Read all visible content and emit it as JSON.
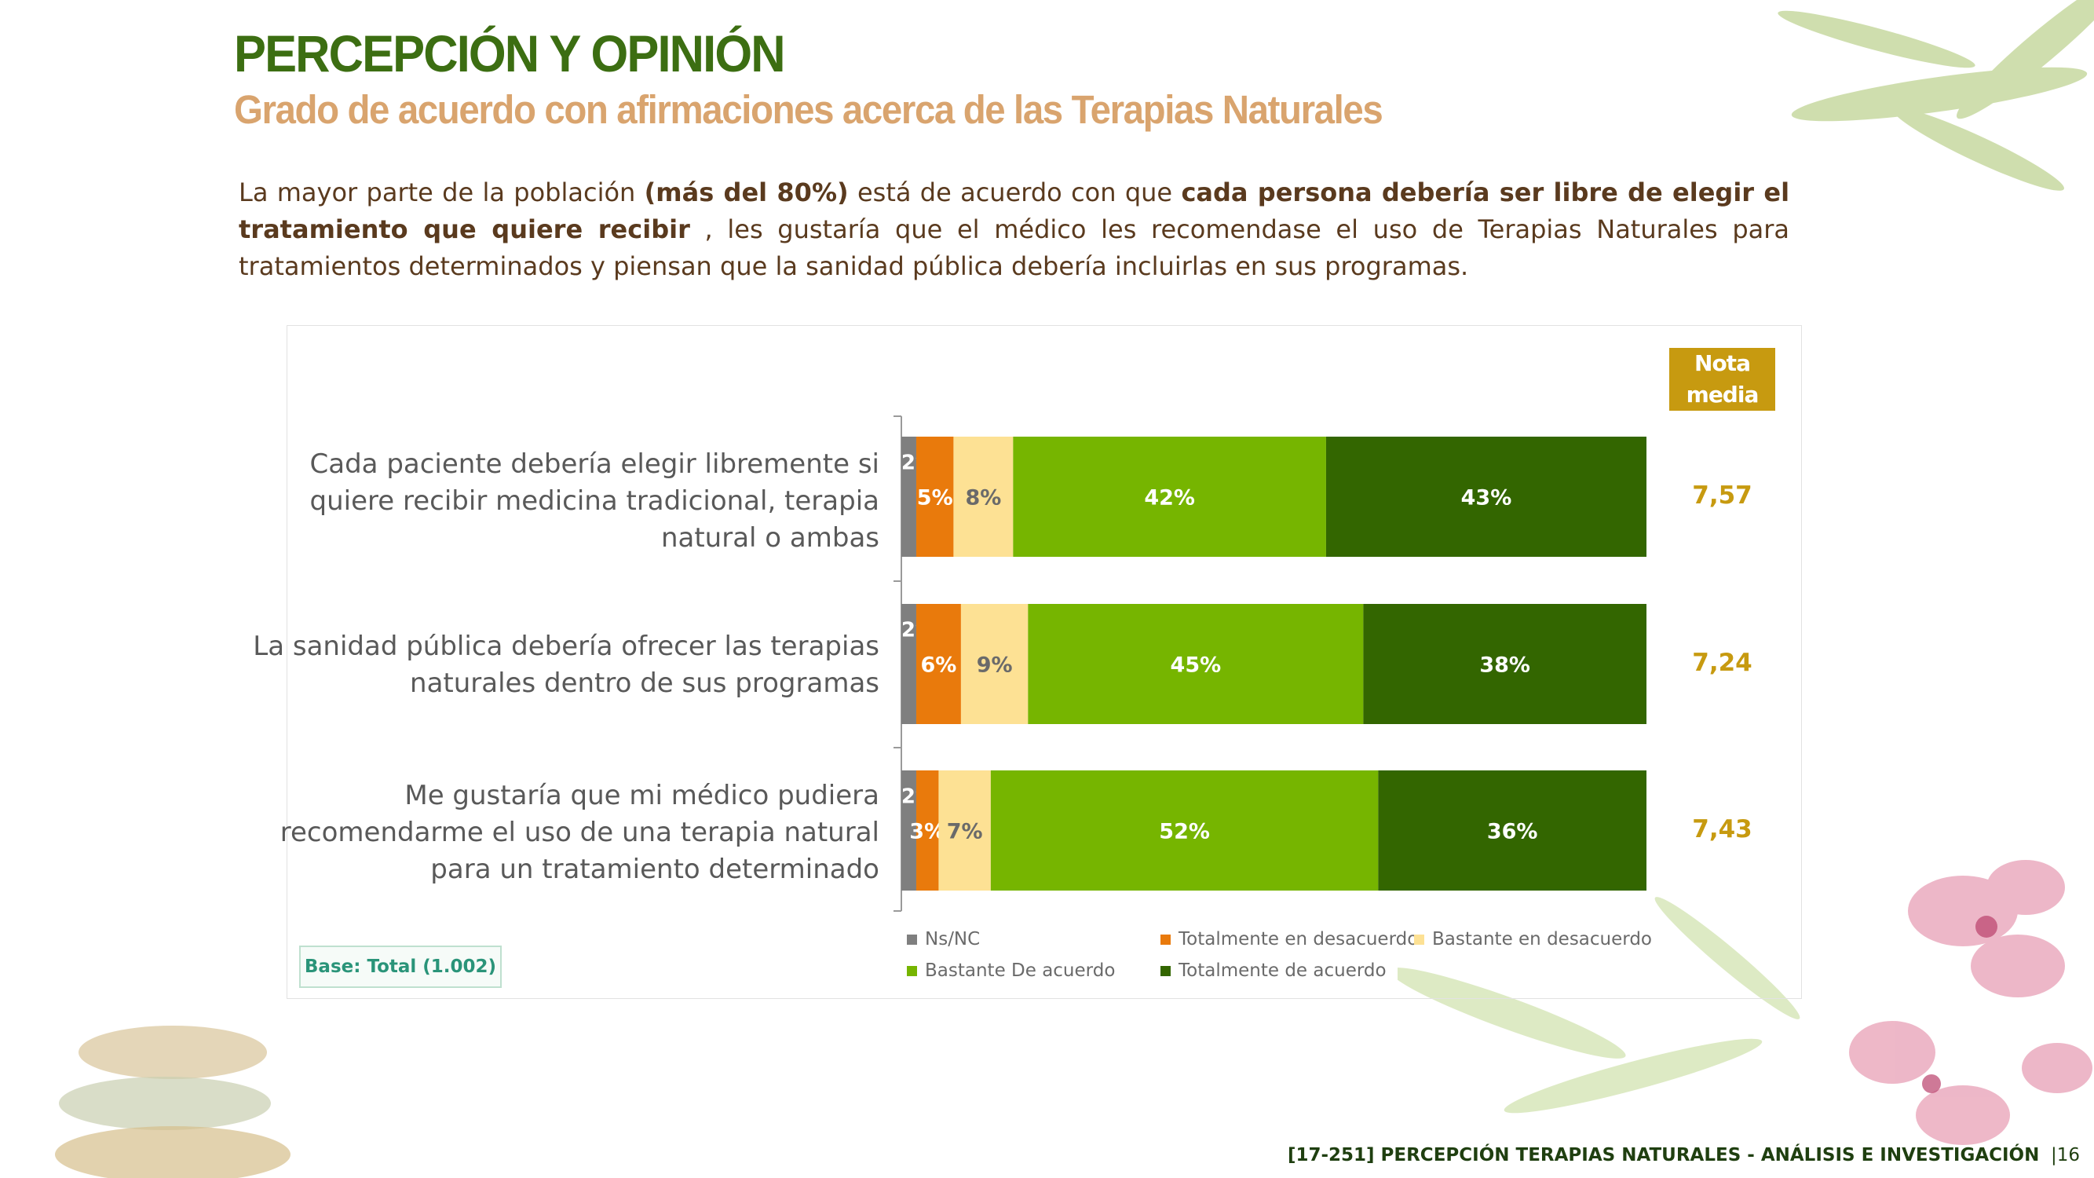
{
  "header": {
    "title": "PERCEPCIÓN Y OPINIÓN",
    "subtitle": "Grado de acuerdo con afirmaciones acerca de las Terapias Naturales"
  },
  "intro": {
    "p1": "La mayor parte de la población ",
    "b1": "(más del 80%)",
    "p2": " está de acuerdo con que ",
    "b2": "cada persona debería ser libre de elegir el tratamiento que quiere recibir",
    "p3": " , les gustaría que el médico les recomendase el uso de Terapias Naturales para tratamientos determinados y piensan que la sanidad pública debería incluirlas en sus programas."
  },
  "nota_media_header": "Nota\nmedia",
  "base_label": "Base: Total (1.002)",
  "footer": {
    "text": "[17-251] PERCEPCIÓN TERAPIAS NATURALES - ANÁLISIS E INVESTIGACIÓN",
    "page": "|16"
  },
  "colors": {
    "title": "#3c6e12",
    "subtitle": "#d9a46e",
    "nota": "#c79a10"
  },
  "chart_data": {
    "type": "bar",
    "orientation": "horizontal",
    "stacked": true,
    "xlim": [
      0,
      100
    ],
    "grid": false,
    "legend_position": "bottom",
    "categories": [
      "Cada paciente debería elegir libremente si quiere recibir medicina tradicional, terapia natural o ambas",
      "La sanidad pública debería ofrecer las terapias naturales dentro de sus programas",
      "Me gustaría que mi médico pudiera recomendarme el uso de una terapia natural para un tratamiento determinado"
    ],
    "series": [
      {
        "name": "Ns/NC",
        "color": "#7f7f7f",
        "values": [
          2,
          2,
          2
        ],
        "labels": [
          "2%",
          "2%",
          "2%"
        ]
      },
      {
        "name": "Totalmente en desacuerdo",
        "color": "#e97a0c",
        "values": [
          5,
          6,
          3
        ],
        "labels": [
          "5%",
          "6%",
          "3%"
        ]
      },
      {
        "name": "Bastante en desacuerdo",
        "color": "#fde194",
        "values": [
          8,
          9,
          7
        ],
        "labels": [
          "8%",
          "9%",
          "7%"
        ]
      },
      {
        "name": "Bastante De acuerdo",
        "color": "#76b500",
        "values": [
          42,
          45,
          52
        ],
        "labels": [
          "42%",
          "45%",
          "52%"
        ]
      },
      {
        "name": "Totalmente de acuerdo",
        "color": "#336600",
        "values": [
          43,
          38,
          36
        ],
        "labels": [
          "43%",
          "38%",
          "36%"
        ]
      }
    ],
    "nota_media": [
      "7,57",
      "7,24",
      "7,43"
    ]
  }
}
